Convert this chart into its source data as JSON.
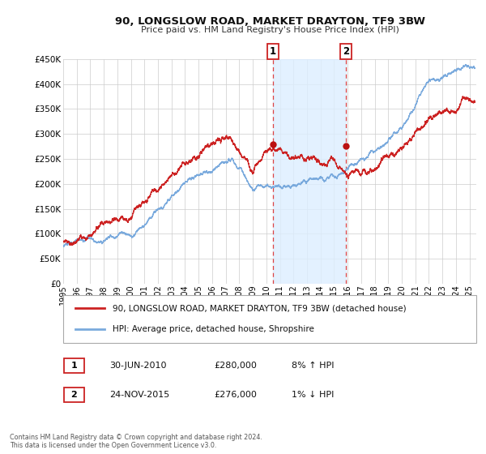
{
  "title": "90, LONGSLOW ROAD, MARKET DRAYTON, TF9 3BW",
  "subtitle": "Price paid vs. HM Land Registry's House Price Index (HPI)",
  "legend_line1": "90, LONGSLOW ROAD, MARKET DRAYTON, TF9 3BW (detached house)",
  "legend_line2": "HPI: Average price, detached house, Shropshire",
  "annotation1_label": "1",
  "annotation1_date": "30-JUN-2010",
  "annotation1_price": "£280,000",
  "annotation1_hpi": "8% ↑ HPI",
  "annotation1_year": 2010.5,
  "annotation1_value": 280000,
  "annotation2_label": "2",
  "annotation2_date": "24-NOV-2015",
  "annotation2_price": "£276,000",
  "annotation2_hpi": "1% ↓ HPI",
  "annotation2_year": 2015.9,
  "annotation2_value": 276000,
  "hpi_color": "#7aaadd",
  "price_color": "#cc2222",
  "dot_color": "#bb1111",
  "vline_color": "#dd4444",
  "shade_color": "#ddeeff",
  "grid_color": "#cccccc",
  "background_color": "#ffffff",
  "footer_text": "Contains HM Land Registry data © Crown copyright and database right 2024.\nThis data is licensed under the Open Government Licence v3.0.",
  "ylim": [
    0,
    450000
  ],
  "yticks": [
    0,
    50000,
    100000,
    150000,
    200000,
    250000,
    300000,
    350000,
    400000,
    450000
  ],
  "ytick_labels": [
    "£0",
    "£50K",
    "£100K",
    "£150K",
    "£200K",
    "£250K",
    "£300K",
    "£350K",
    "£400K",
    "£450K"
  ],
  "xlim_start": 1995.0,
  "xlim_end": 2025.5
}
